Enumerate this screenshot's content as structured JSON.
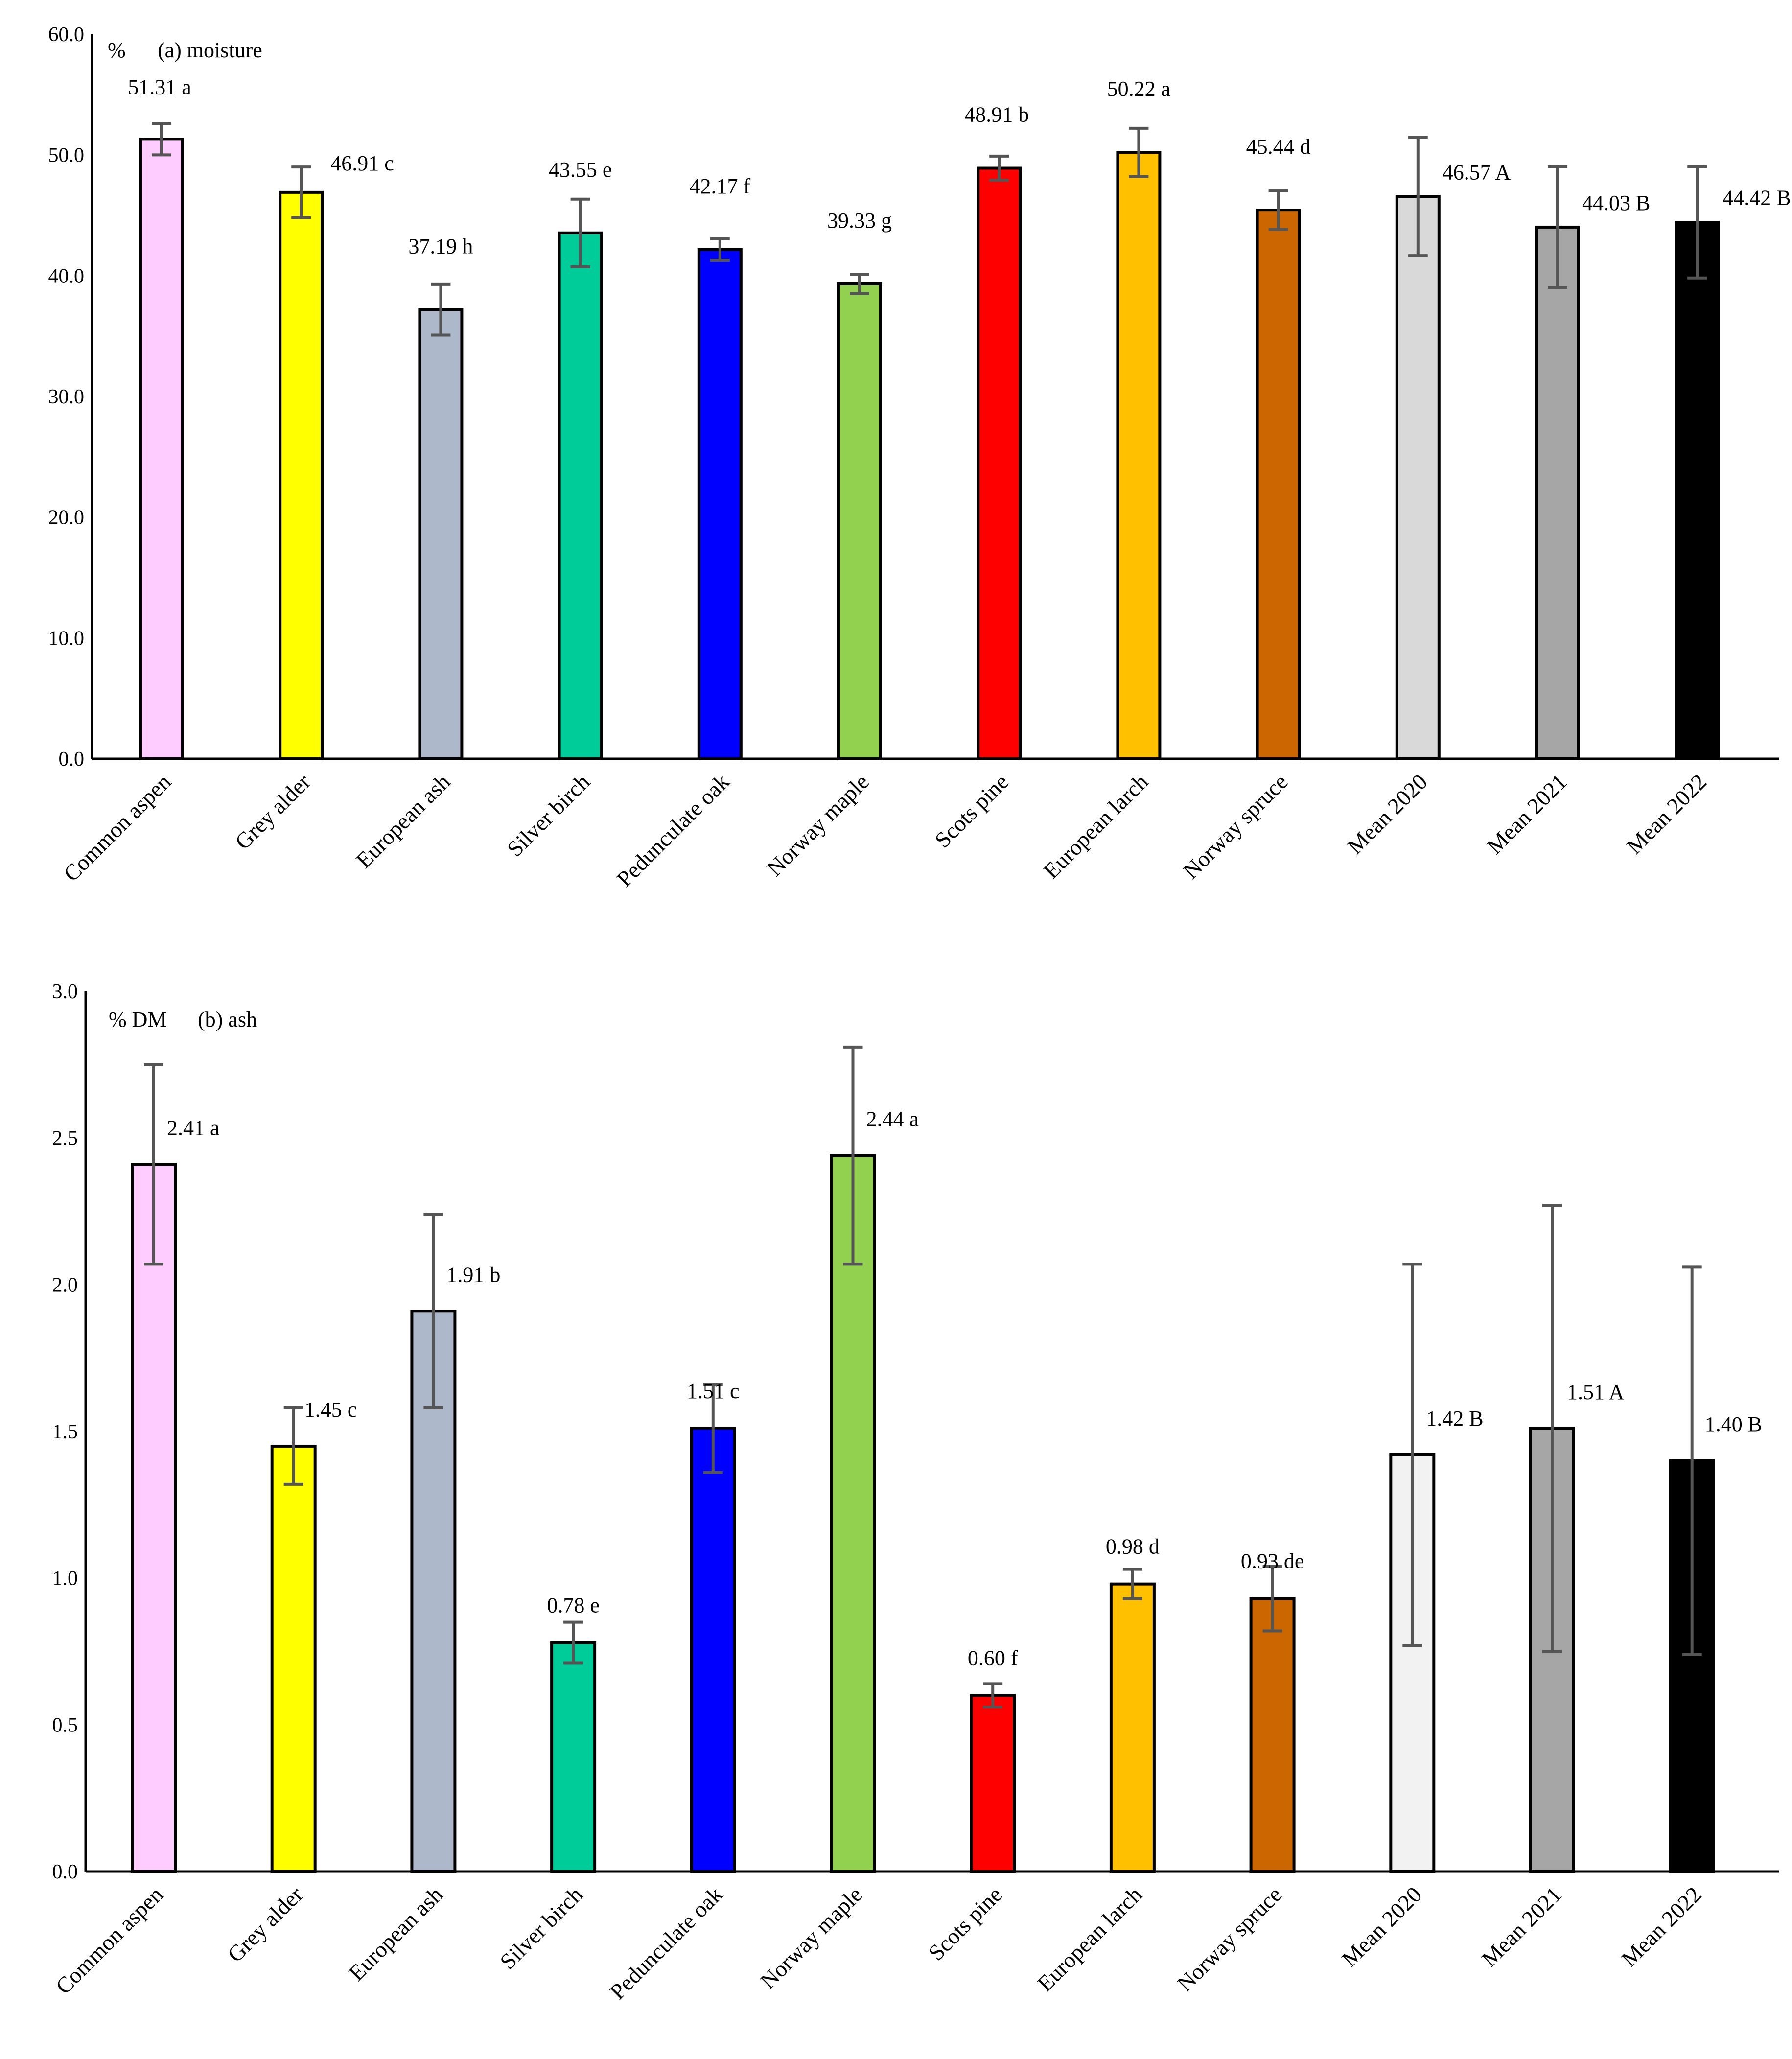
{
  "chart_data": [
    {
      "type": "bar",
      "title": "(a) moisture",
      "ylabel": "%",
      "ylim": [
        0,
        60
      ],
      "yticks": [
        "0.0",
        "10.0",
        "20.0",
        "30.0",
        "40.0",
        "50.0",
        "60.0"
      ],
      "categories": [
        "Common aspen",
        "Grey alder",
        "European ash",
        "Silver birch",
        "Pedunculate oak",
        "Norway maple",
        "Scots pine",
        "European larch",
        "Norway spruce",
        "Mean 2020",
        "Mean 2021",
        "Mean 2022"
      ],
      "values": [
        51.31,
        46.91,
        37.19,
        43.55,
        42.17,
        39.33,
        48.91,
        50.22,
        45.44,
        46.57,
        44.03,
        44.42
      ],
      "errors": [
        1.3,
        2.1,
        2.1,
        2.8,
        0.9,
        0.8,
        1.0,
        2.0,
        1.6,
        4.9,
        5.0,
        4.6
      ],
      "labels": [
        "51.31 a",
        "46.91 c",
        "37.19 h",
        "43.55 e",
        "42.17 f",
        "39.33 g",
        "48.91 b",
        "50.22 a",
        "45.44 d",
        "46.57 A",
        "44.03 B",
        "44.42 B"
      ],
      "colors": [
        "#FFCCFF",
        "#FFFF00",
        "#ADB9CA",
        "#00CC99",
        "#0000FF",
        "#92D050",
        "#FF0000",
        "#FFC000",
        "#CC6600",
        "#D9D9D9",
        "#A6A6A6",
        "#000000"
      ]
    },
    {
      "type": "bar",
      "title": "(b)  ash",
      "ylabel": "% DM",
      "ylim": [
        0,
        3
      ],
      "yticks": [
        "0.0",
        "0.5",
        "1.0",
        "1.5",
        "2.0",
        "2.5",
        "3.0"
      ],
      "categories": [
        "Common aspen",
        "Grey alder",
        "European ash",
        "Silver birch",
        "Pedunculate oak",
        "Norway maple",
        "Scots pine",
        "European larch",
        "Norway spruce",
        "Mean 2020",
        "Mean 2021",
        "Mean 2022"
      ],
      "values": [
        2.41,
        1.45,
        1.91,
        0.78,
        1.51,
        2.44,
        0.6,
        0.98,
        0.93,
        1.42,
        1.51,
        1.4
      ],
      "errors": [
        0.34,
        0.13,
        0.33,
        0.07,
        0.15,
        0.37,
        0.04,
        0.05,
        0.11,
        0.65,
        0.76,
        0.66
      ],
      "labels": [
        "2.41 a",
        "1.45 c",
        "1.91 b",
        "0.78 e",
        "1.51 c",
        "2.44 a",
        "0.60 f",
        "0.98 d",
        "0.93 de",
        "1.42 B",
        "1.51 A",
        "1.40 B"
      ],
      "colors": [
        "#FFCCFF",
        "#FFFF00",
        "#ADB9CA",
        "#00CC99",
        "#0000FF",
        "#92D050",
        "#FF0000",
        "#FFC000",
        "#CC6600",
        "#F2F2F2",
        "#A6A6A6",
        "#000000"
      ]
    }
  ]
}
